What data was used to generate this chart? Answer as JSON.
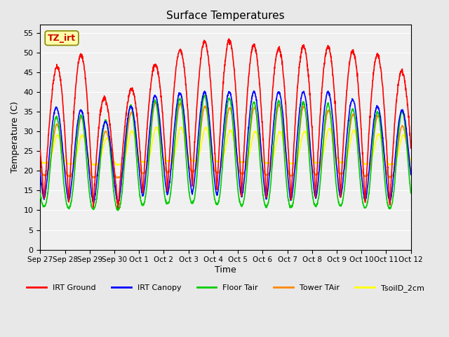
{
  "title": "Surface Temperatures",
  "xlabel": "Time",
  "ylabel": "Temperature (C)",
  "annotation": "TZ_irt",
  "ylim": [
    0,
    57
  ],
  "yticks": [
    0,
    5,
    10,
    15,
    20,
    25,
    30,
    35,
    40,
    45,
    50,
    55
  ],
  "xtick_labels": [
    "Sep 27",
    "Sep 28",
    "Sep 29",
    "Sep 30",
    "Oct 1",
    "Oct 2",
    "Oct 3",
    "Oct 4",
    "Oct 5",
    "Oct 6",
    "Oct 7",
    "Oct 8",
    "Oct 9",
    "Oct 10",
    "Oct 11",
    "Oct 12"
  ],
  "series_colors": {
    "IRT Ground": "#ff0000",
    "IRT Canopy": "#0000ff",
    "Floor Tair": "#00cc00",
    "Tower TAir": "#ff8800",
    "TsoilD_2cm": "#ffff00"
  },
  "legend_order": [
    "IRT Ground",
    "IRT Canopy",
    "Floor Tair",
    "Tower TAir",
    "TsoilD_2cm"
  ],
  "bg_color": "#e8e8e8",
  "plot_bg_color": "#f0f0f0",
  "grid_color": "#ffffff",
  "num_days": 15
}
